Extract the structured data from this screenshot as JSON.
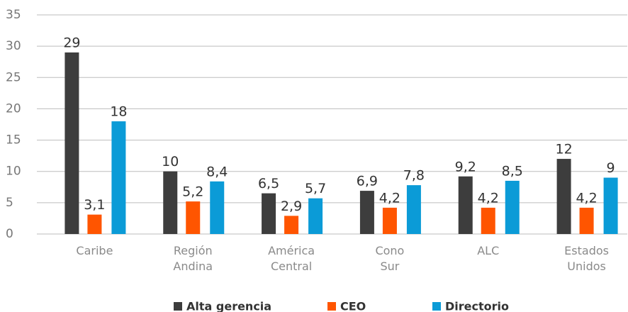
{
  "chart_data": {
    "type": "bar",
    "categories": [
      "Caribe",
      "Región\nAndina",
      "América\nCentral",
      "Cono\nSur",
      "ALC",
      "Estados\nUnidos"
    ],
    "series": [
      {
        "name": "Alta gerencia",
        "color": "#3d3d3d",
        "values": [
          29,
          10,
          6.5,
          6.9,
          9.2,
          12
        ],
        "value_labels": [
          "29",
          "10",
          "6,5",
          "6,9",
          "9,2",
          "12"
        ]
      },
      {
        "name": "CEO",
        "color": "#ff5500",
        "values": [
          3.1,
          5.2,
          2.9,
          4.2,
          4.2,
          4.2
        ],
        "value_labels": [
          "3,1",
          "5,2",
          "2,9",
          "4,2",
          "4,2",
          "4,2"
        ]
      },
      {
        "name": "Directorio",
        "color": "#0b9bd7",
        "values": [
          18,
          8.4,
          5.7,
          7.8,
          8.5,
          9
        ],
        "value_labels": [
          "18",
          "8,4",
          "5,7",
          "7,8",
          "8,5",
          "9"
        ]
      }
    ],
    "ylim": [
      0,
      35
    ],
    "yticks": [
      0,
      5,
      10,
      15,
      20,
      25,
      30,
      35
    ],
    "grid": true,
    "legend": "bottom"
  }
}
